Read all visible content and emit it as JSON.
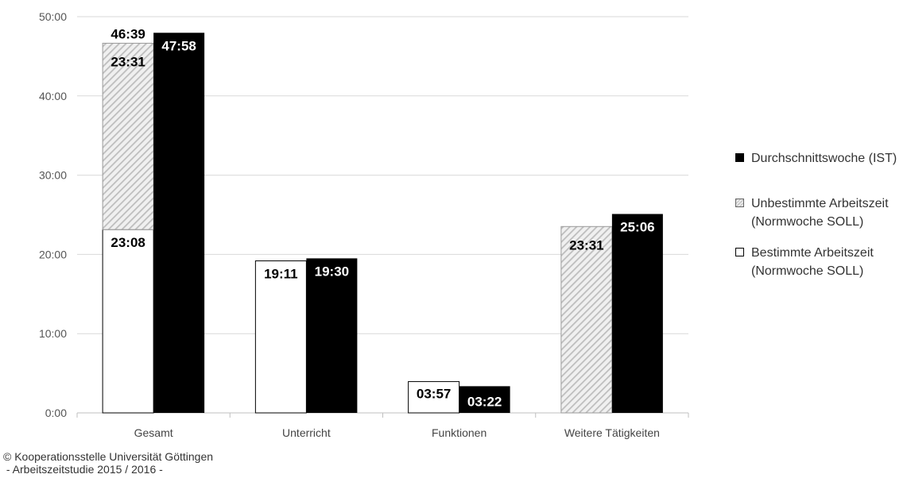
{
  "chart_data": {
    "type": "bar",
    "categories": [
      "Gesamt",
      "Unterricht",
      "Funktionen",
      "Weitere Tätigkeiten"
    ],
    "y_ticks": [
      "0:00",
      "10:00",
      "20:00",
      "30:00",
      "40:00",
      "50:00"
    ],
    "ylim": [
      0,
      50
    ],
    "y_unit": "hours (hh:mm)",
    "grid": true,
    "legend_position": "right",
    "series": [
      {
        "name": "Bestimmte Arbeitszeit (Normwoche SOLL)",
        "stack": "soll",
        "values": [
          23.133,
          19.183,
          3.95,
          0
        ],
        "labels": [
          "23:08",
          "19:11",
          "03:57",
          ""
        ]
      },
      {
        "name": "Unbestimmte Arbeitszeit (Normwoche SOLL)",
        "stack": "soll",
        "values": [
          23.517,
          0,
          0,
          23.517
        ],
        "labels": [
          "23:31",
          "",
          "",
          "23:31"
        ]
      },
      {
        "name": "Durchschnittswoche (IST)",
        "stack": "ist",
        "values": [
          47.967,
          19.5,
          3.367,
          25.1
        ],
        "labels": [
          "47:58",
          "19:30",
          "03:22",
          "25:06"
        ]
      }
    ],
    "stack_totals": {
      "soll": [
        46.65,
        19.183,
        3.95,
        23.517
      ]
    },
    "total_labels": [
      "46:39",
      "",
      "",
      ""
    ]
  },
  "legend": {
    "items": [
      {
        "label": "Durchschnittswoche (IST)"
      },
      {
        "label": "Unbestimmte Arbeitszeit (Normwoche SOLL)"
      },
      {
        "label": "Bestimmte Arbeitszeit (Normwoche SOLL)"
      }
    ]
  },
  "footer": {
    "line1": "© Kooperationsstelle Universität Göttingen",
    "line2": " - Arbeitszeitstudie 2015 / 2016 -"
  },
  "colors": {
    "ist": "#000000",
    "unbestimmt_hatch": "#c8c8c8",
    "bestimmt": "#ffffff",
    "grid": "#d9d9d9"
  }
}
